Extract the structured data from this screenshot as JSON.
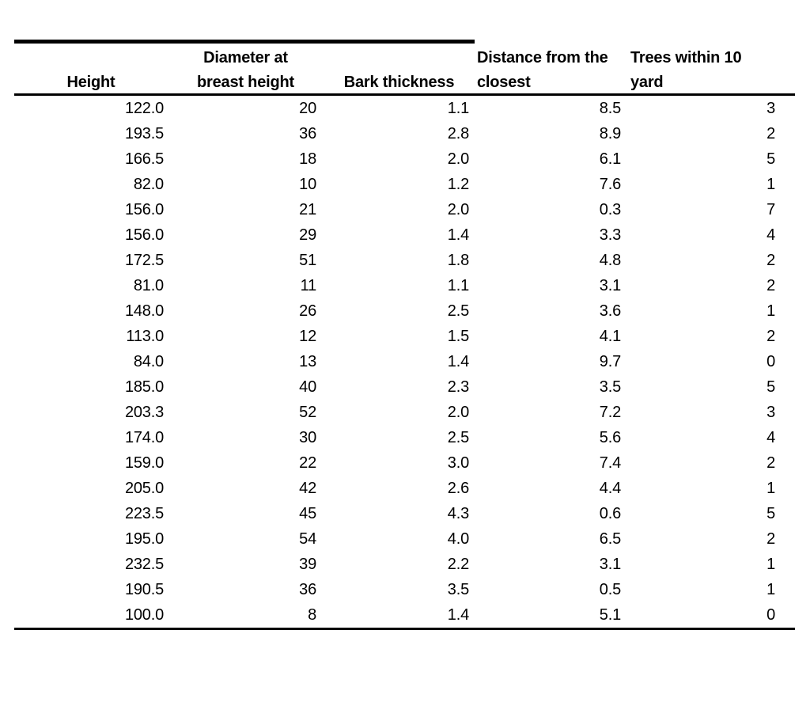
{
  "table": {
    "header_row1": [
      "",
      "Diameter at",
      "",
      "Distance from the",
      "Trees within 10"
    ],
    "header_row2": [
      "Height",
      "breast height",
      "Bark thickness",
      "closest",
      "yard"
    ],
    "rows": [
      [
        "122.0",
        "20",
        "1.1",
        "8.5",
        "3"
      ],
      [
        "193.5",
        "36",
        "2.8",
        "8.9",
        "2"
      ],
      [
        "166.5",
        "18",
        "2.0",
        "6.1",
        "5"
      ],
      [
        "82.0",
        "10",
        "1.2",
        "7.6",
        "1"
      ],
      [
        "156.0",
        "21",
        "2.0",
        "0.3",
        "7"
      ],
      [
        "156.0",
        "29",
        "1.4",
        "3.3",
        "4"
      ],
      [
        "172.5",
        "51",
        "1.8",
        "4.8",
        "2"
      ],
      [
        "81.0",
        "11",
        "1.1",
        "3.1",
        "2"
      ],
      [
        "148.0",
        "26",
        "2.5",
        "3.6",
        "1"
      ],
      [
        "113.0",
        "12",
        "1.5",
        "4.1",
        "2"
      ],
      [
        "84.0",
        "13",
        "1.4",
        "9.7",
        "0"
      ],
      [
        "185.0",
        "40",
        "2.3",
        "3.5",
        "5"
      ],
      [
        "203.3",
        "52",
        "2.0",
        "7.2",
        "3"
      ],
      [
        "174.0",
        "30",
        "2.5",
        "5.6",
        "4"
      ],
      [
        "159.0",
        "22",
        "3.0",
        "7.4",
        "2"
      ],
      [
        "205.0",
        "42",
        "2.6",
        "4.4",
        "1"
      ],
      [
        "223.5",
        "45",
        "4.3",
        "0.6",
        "5"
      ],
      [
        "195.0",
        "54",
        "4.0",
        "6.5",
        "2"
      ],
      [
        "232.5",
        "39",
        "2.2",
        "3.1",
        "1"
      ],
      [
        "190.5",
        "36",
        "3.5",
        "0.5",
        "1"
      ],
      [
        "100.0",
        "8",
        "1.4",
        "5.1",
        "0"
      ]
    ]
  },
  "chart_data": {
    "type": "table",
    "columns": [
      "Height",
      "Diameter at breast height",
      "Bark thickness",
      "Distance from the closest",
      "Trees within 10 yard"
    ],
    "rows": [
      [
        122.0,
        20,
        1.1,
        8.5,
        3
      ],
      [
        193.5,
        36,
        2.8,
        8.9,
        2
      ],
      [
        166.5,
        18,
        2.0,
        6.1,
        5
      ],
      [
        82.0,
        10,
        1.2,
        7.6,
        1
      ],
      [
        156.0,
        21,
        2.0,
        0.3,
        7
      ],
      [
        156.0,
        29,
        1.4,
        3.3,
        4
      ],
      [
        172.5,
        51,
        1.8,
        4.8,
        2
      ],
      [
        81.0,
        11,
        1.1,
        3.1,
        2
      ],
      [
        148.0,
        26,
        2.5,
        3.6,
        1
      ],
      [
        113.0,
        12,
        1.5,
        4.1,
        2
      ],
      [
        84.0,
        13,
        1.4,
        9.7,
        0
      ],
      [
        185.0,
        40,
        2.3,
        3.5,
        5
      ],
      [
        203.3,
        52,
        2.0,
        7.2,
        3
      ],
      [
        174.0,
        30,
        2.5,
        5.6,
        4
      ],
      [
        159.0,
        22,
        3.0,
        7.4,
        2
      ],
      [
        205.0,
        42,
        2.6,
        4.4,
        1
      ],
      [
        223.5,
        45,
        4.3,
        0.6,
        5
      ],
      [
        195.0,
        54,
        4.0,
        6.5,
        2
      ],
      [
        232.5,
        39,
        2.2,
        3.1,
        1
      ],
      [
        190.5,
        36,
        3.5,
        0.5,
        1
      ],
      [
        100.0,
        8,
        1.4,
        5.1,
        0
      ]
    ],
    "layout": {
      "top_rule_spans_columns": [
        1,
        2,
        3
      ],
      "header_alignment": [
        "center",
        "center",
        "center",
        "left",
        "left"
      ],
      "data_alignment": [
        "right",
        "right",
        "right",
        "right",
        "right"
      ],
      "grid": "off"
    }
  },
  "colors": {
    "background": "#ffffff",
    "text": "#000000",
    "rule": "#000000"
  }
}
